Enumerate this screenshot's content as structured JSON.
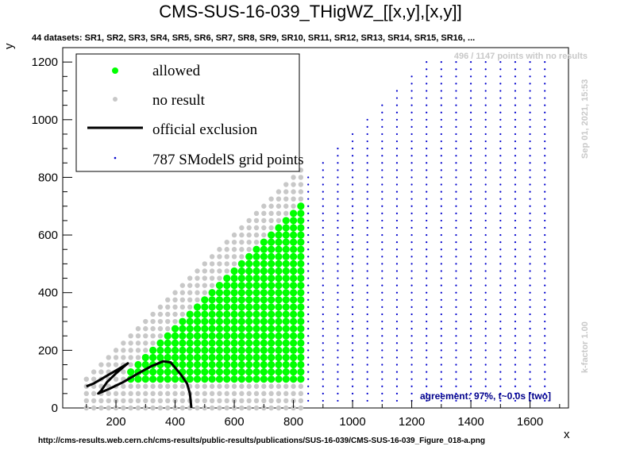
{
  "chart_data": {
    "type": "scatter",
    "title": "CMS-SUS-16-039_THigWZ_[[x,y],[x,y]]",
    "subtitle": "44 datasets: SR1, SR2, SR3, SR4, SR5, SR6, SR7, SR8, SR9, SR10, SR11, SR12, SR13, SR14, SR15, SR16,  ...",
    "xlabel": "x",
    "ylabel": "y",
    "xlim": [
      20,
      1730
    ],
    "ylim": [
      0,
      1250
    ],
    "xticks": [
      200,
      400,
      600,
      800,
      1000,
      1200,
      1400,
      1600
    ],
    "yticks": [
      0,
      200,
      400,
      600,
      800,
      1000,
      1200
    ],
    "legend_position": "top-left",
    "legend": [
      {
        "name": "allowed",
        "color": "#00ff00",
        "marker": "circle"
      },
      {
        "name": "no result",
        "color": "#c8c8c8",
        "marker": "circle"
      },
      {
        "name": "official exclusion",
        "color": "#000000",
        "marker": "line"
      },
      {
        "name": "787 SModelS grid points",
        "color": "#0000cd",
        "marker": "dot"
      }
    ],
    "no_result_note": "496 / 1147 points with no results",
    "timestamp": "Sep 01, 2021, 15:53",
    "kfactor": "k-factor 1.00",
    "agreement": "agreement: 97%, t~0.0s [two]",
    "regions": {
      "no_result": {
        "x_min": 100,
        "x_max": 825,
        "y_min": 0,
        "y_max_offset": 0,
        "x_step": 25,
        "y_step": 25
      },
      "allowed": {
        "x_min": 250,
        "x_max": 825,
        "y_min": 100,
        "y_max_offset": 110,
        "x_step": 25,
        "y_step": 25
      },
      "grid_points": {
        "x_min": 850,
        "x_max": 1650,
        "x_step": 50,
        "y_min": 25,
        "y_max": 1200,
        "y_step": 25,
        "diag_offset": 50
      }
    },
    "exclusion_curve": [
      [
        100,
        75
      ],
      [
        125,
        85
      ],
      [
        150,
        100
      ],
      [
        175,
        115
      ],
      [
        200,
        130
      ],
      [
        225,
        145
      ],
      [
        240,
        155
      ],
      [
        200,
        120
      ],
      [
        170,
        90
      ],
      [
        150,
        60
      ],
      [
        140,
        50
      ],
      [
        175,
        65
      ],
      [
        225,
        90
      ],
      [
        275,
        120
      ],
      [
        320,
        145
      ],
      [
        360,
        162
      ],
      [
        385,
        158
      ],
      [
        400,
        140
      ],
      [
        420,
        115
      ],
      [
        440,
        85
      ],
      [
        450,
        50
      ],
      [
        455,
        0
      ]
    ]
  },
  "footer_url": "http://cms-results.web.cern.ch/cms-results/public-results/publications/SUS-16-039/CMS-SUS-16-039_Figure_018-a.png"
}
